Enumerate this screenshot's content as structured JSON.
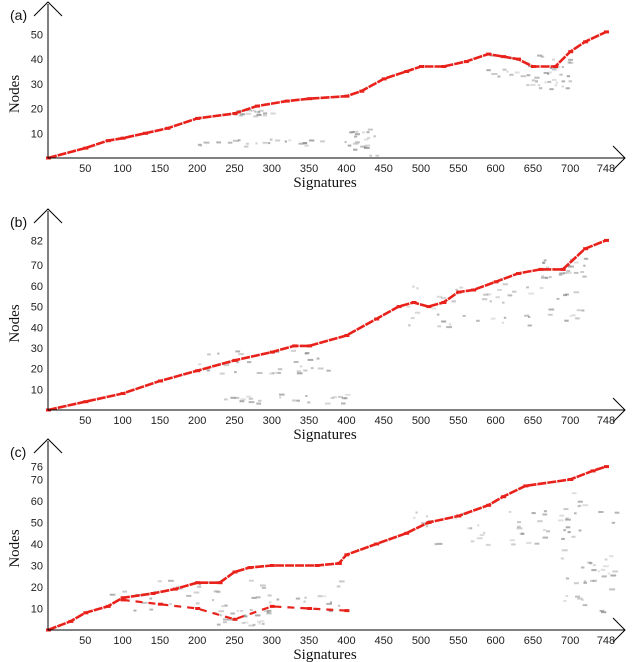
{
  "colors": {
    "highlight": "#e8211b",
    "noise": "#8a8a8a",
    "axis": "#000000"
  },
  "chart_data": [
    {
      "type": "scatter",
      "panel_label": "(a)",
      "xlabel": "Signatures",
      "ylabel": "Nodes",
      "xlim": [
        0,
        760
      ],
      "ylim": [
        0,
        55
      ],
      "xticks": [
        50,
        100,
        150,
        200,
        250,
        300,
        350,
        400,
        450,
        500,
        550,
        600,
        650,
        700,
        748
      ],
      "yticks": [
        10,
        20,
        30,
        40,
        50
      ],
      "series": [
        {
          "role": "path",
          "points": [
            [
              0,
              0
            ],
            [
              50,
              4
            ],
            [
              80,
              7
            ],
            [
              100,
              8
            ],
            [
              130,
              10
            ],
            [
              160,
              12
            ],
            [
              200,
              16
            ],
            [
              250,
              18
            ],
            [
              280,
              21
            ],
            [
              320,
              23
            ],
            [
              350,
              24
            ],
            [
              400,
              25
            ],
            [
              420,
              27
            ],
            [
              450,
              32
            ],
            [
              480,
              35
            ],
            [
              500,
              37
            ],
            [
              530,
              37
            ],
            [
              560,
              39
            ],
            [
              590,
              42
            ],
            [
              610,
              41
            ],
            [
              630,
              40
            ],
            [
              650,
              37
            ],
            [
              680,
              37
            ],
            [
              700,
              43
            ],
            [
              720,
              47
            ],
            [
              748,
              51
            ]
          ]
        }
      ],
      "noise_clusters": [
        {
          "x": [
            240,
            300
          ],
          "y": [
            17,
            20
          ]
        },
        {
          "x": [
            180,
            420
          ],
          "y": [
            5,
            8
          ]
        },
        {
          "x": [
            400,
            440
          ],
          "y": [
            1,
            12
          ]
        },
        {
          "x": [
            580,
            700
          ],
          "y": [
            33,
            42
          ]
        },
        {
          "x": [
            640,
            700
          ],
          "y": [
            28,
            35
          ]
        }
      ]
    },
    {
      "type": "scatter",
      "panel_label": "(b)",
      "xlabel": "Signatures",
      "ylabel": "Nodes",
      "xlim": [
        0,
        760
      ],
      "ylim": [
        0,
        88
      ],
      "xticks": [
        50,
        100,
        150,
        200,
        250,
        300,
        350,
        400,
        450,
        500,
        550,
        600,
        650,
        700,
        748
      ],
      "yticks": [
        10,
        20,
        30,
        40,
        50,
        60,
        70,
        82
      ],
      "series": [
        {
          "role": "path",
          "points": [
            [
              0,
              0
            ],
            [
              50,
              4
            ],
            [
              100,
              8
            ],
            [
              150,
              14
            ],
            [
              200,
              19
            ],
            [
              250,
              24
            ],
            [
              300,
              28
            ],
            [
              330,
              31
            ],
            [
              350,
              31
            ],
            [
              400,
              36
            ],
            [
              440,
              44
            ],
            [
              470,
              50
            ],
            [
              490,
              52
            ],
            [
              510,
              50
            ],
            [
              530,
              52
            ],
            [
              550,
              57
            ],
            [
              570,
              58
            ],
            [
              600,
              62
            ],
            [
              630,
              66
            ],
            [
              660,
              68
            ],
            [
              690,
              68
            ],
            [
              720,
              78
            ],
            [
              748,
              82
            ]
          ]
        }
      ],
      "noise_clusters": [
        {
          "x": [
            200,
            380
          ],
          "y": [
            18,
            30
          ]
        },
        {
          "x": [
            220,
            400
          ],
          "y": [
            3,
            8
          ]
        },
        {
          "x": [
            480,
            720
          ],
          "y": [
            40,
            62
          ]
        },
        {
          "x": [
            660,
            720
          ],
          "y": [
            64,
            74
          ]
        }
      ]
    },
    {
      "type": "scatter",
      "panel_label": "(c)",
      "xlabel": "Signatures",
      "ylabel": "Nodes",
      "xlim": [
        0,
        760
      ],
      "ylim": [
        0,
        80
      ],
      "xticks": [
        50,
        100,
        150,
        200,
        250,
        300,
        350,
        400,
        450,
        500,
        550,
        600,
        650,
        700,
        748
      ],
      "yticks": [
        10,
        20,
        30,
        40,
        50,
        60,
        70,
        76
      ],
      "series": [
        {
          "role": "path",
          "points": [
            [
              0,
              0
            ],
            [
              30,
              4
            ],
            [
              50,
              8
            ],
            [
              80,
              11
            ],
            [
              100,
              15
            ],
            [
              140,
              17
            ],
            [
              170,
              19
            ],
            [
              200,
              22
            ],
            [
              230,
              22
            ],
            [
              250,
              27
            ],
            [
              270,
              29
            ],
            [
              300,
              30
            ],
            [
              360,
              30
            ],
            [
              390,
              31
            ],
            [
              400,
              35
            ],
            [
              440,
              40
            ],
            [
              480,
              45
            ],
            [
              510,
              50
            ],
            [
              550,
              53
            ],
            [
              590,
              58
            ],
            [
              610,
              62
            ],
            [
              640,
              67
            ],
            [
              700,
              70
            ],
            [
              730,
              74
            ],
            [
              748,
              76
            ]
          ]
        },
        {
          "role": "secondary",
          "points": [
            [
              100,
              14
            ],
            [
              150,
              12
            ],
            [
              200,
              10
            ],
            [
              250,
              5
            ],
            [
              300,
              11
            ],
            [
              350,
              10
            ],
            [
              400,
              9
            ]
          ]
        }
      ],
      "noise_clusters": [
        {
          "x": [
            80,
            400
          ],
          "y": [
            8,
            24
          ]
        },
        {
          "x": [
            220,
            300
          ],
          "y": [
            2,
            10
          ]
        },
        {
          "x": [
            480,
            700
          ],
          "y": [
            40,
            56
          ]
        },
        {
          "x": [
            680,
            760
          ],
          "y": [
            8,
            66
          ]
        }
      ]
    }
  ]
}
